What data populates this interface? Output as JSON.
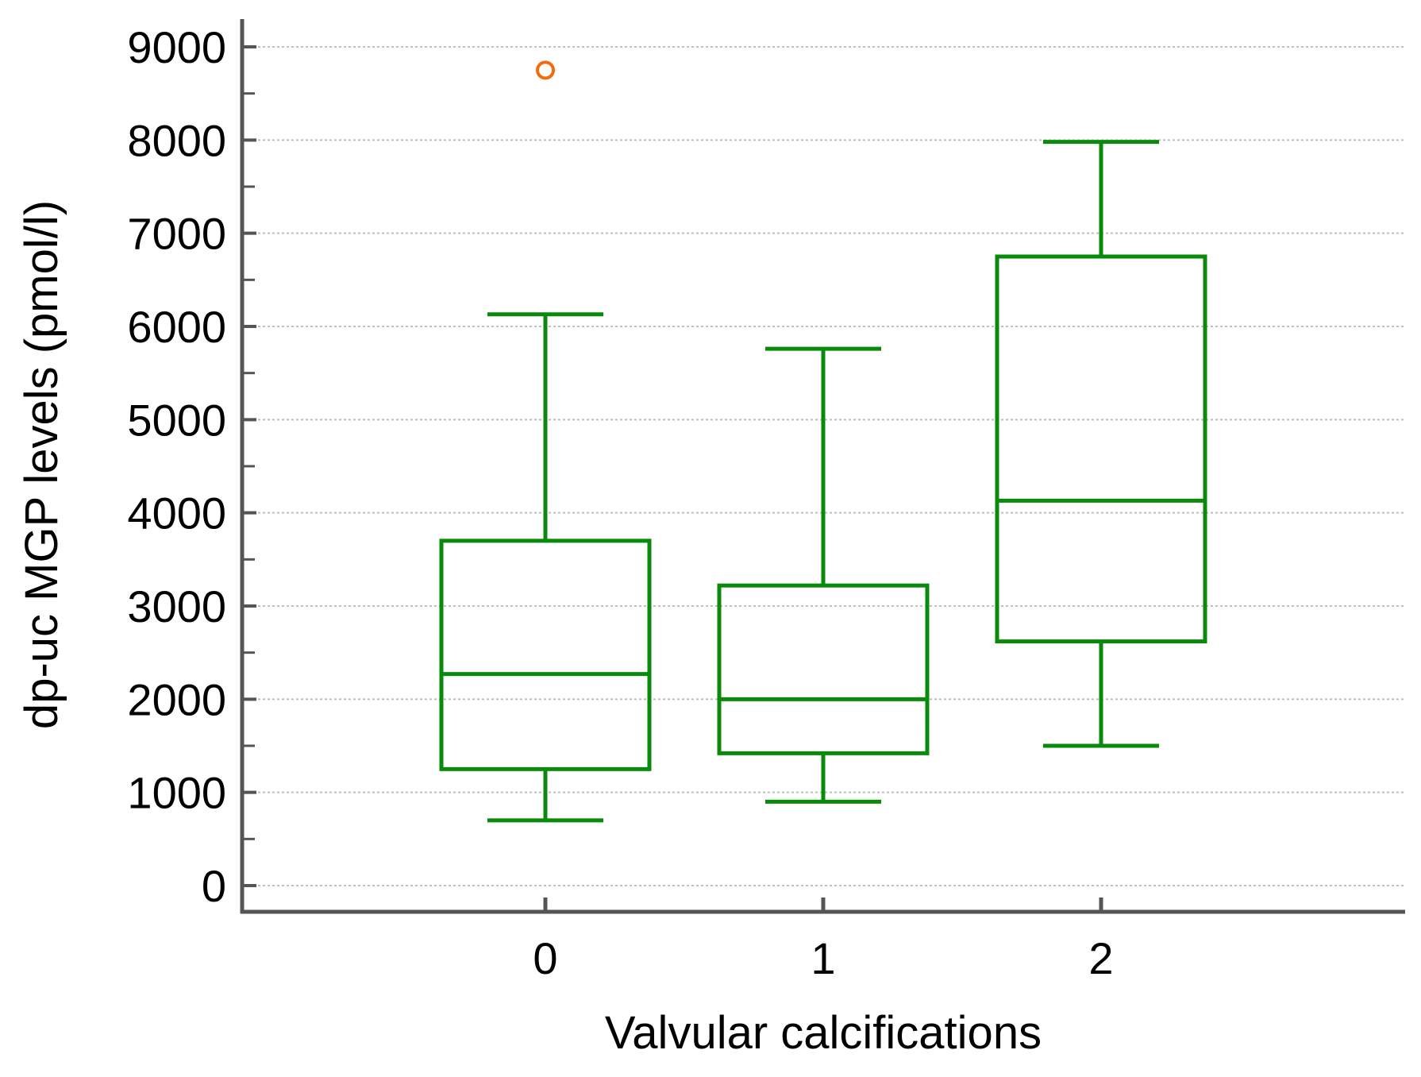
{
  "chart_data": {
    "type": "boxplot",
    "xlabel": "Valvular calcifications",
    "ylabel": "dp-uc MGP levels (pmol/l)",
    "ylim": [
      0,
      9000
    ],
    "y_ticks": [
      0,
      1000,
      2000,
      3000,
      4000,
      5000,
      6000,
      7000,
      8000,
      9000
    ],
    "y_tick_labels": [
      "0",
      "1000",
      "2000",
      "3000",
      "4000",
      "5000",
      "6000",
      "7000",
      "8000",
      "9000"
    ],
    "y_minor_step": 500,
    "grid": true,
    "categories": [
      "0",
      "1",
      "2"
    ],
    "boxes": [
      {
        "category": "0",
        "whisker_low": 700,
        "q1": 1250,
        "median": 2270,
        "q3": 3700,
        "whisker_high": 6130,
        "outliers": [
          8750
        ]
      },
      {
        "category": "1",
        "whisker_low": 900,
        "q1": 1420,
        "median": 2000,
        "q3": 3220,
        "whisker_high": 5760,
        "outliers": []
      },
      {
        "category": "2",
        "whisker_low": 1500,
        "q1": 2620,
        "median": 4130,
        "q3": 6750,
        "whisker_high": 7980,
        "outliers": []
      }
    ],
    "colors": {
      "box": "#0a8a0a",
      "outlier": "#f26b0f",
      "axis": "#555555",
      "grid": "#bdbdbd",
      "text": "#000000"
    }
  }
}
